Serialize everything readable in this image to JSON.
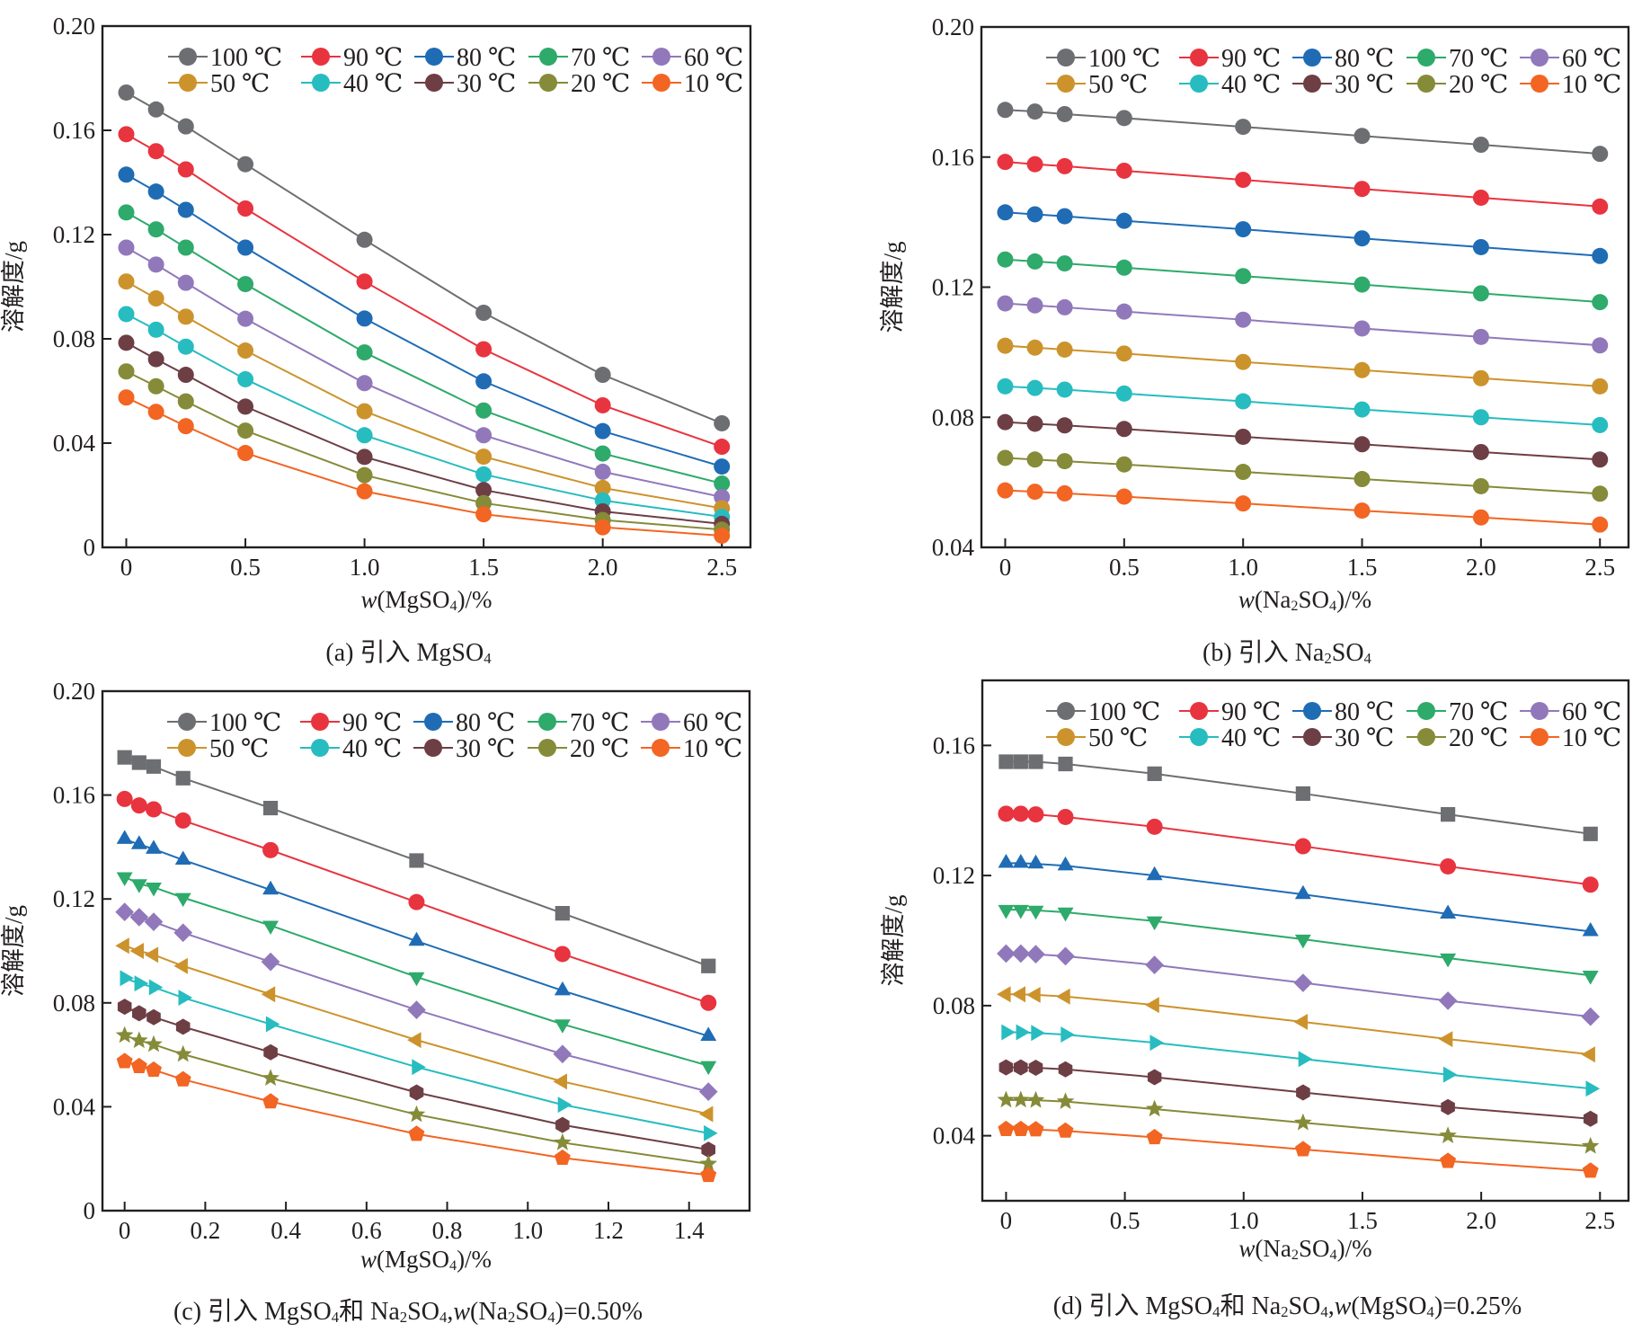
{
  "chart_data": [
    {
      "id": "a",
      "type": "line",
      "caption": {
        "prefix": "(a) 引入 ",
        "formula": [
          [
            "Mg",
            ""
          ],
          [
            "SO",
            ""
          ],
          [
            "4",
            "sub"
          ]
        ]
      },
      "xlabel": {
        "italic": "w",
        "text": "(MgSO",
        "sub": "4",
        "after": ")/%"
      },
      "ylabel": "溶解度/g",
      "xlim": [
        -0.1,
        2.62
      ],
      "ylim": [
        0,
        0.2
      ],
      "xticks": [
        0,
        0.5,
        1.0,
        1.5,
        2.0,
        2.5
      ],
      "xtick_labels": [
        "0",
        "0.5",
        "1.0",
        "1.5",
        "2.0",
        "2.5"
      ],
      "yticks": [
        0,
        0.04,
        0.08,
        0.12,
        0.16,
        0.2
      ],
      "ytick_labels": [
        "0",
        "0.04",
        "0.08",
        "0.12",
        "0.16",
        "0.20"
      ],
      "marker_mode": "circle",
      "legend_position": "top-right",
      "grid": false,
      "x": [
        0,
        0.125,
        0.25,
        0.5,
        1.0,
        1.5,
        2.0,
        2.5
      ],
      "series": [
        {
          "name": "100 ℃",
          "values": [
            0.1745,
            0.168,
            0.1615,
            0.147,
            0.118,
            0.09,
            0.0662,
            0.0476
          ]
        },
        {
          "name": "90 ℃",
          "values": [
            0.1585,
            0.152,
            0.145,
            0.13,
            0.102,
            0.076,
            0.0545,
            0.0386
          ]
        },
        {
          "name": "80 ℃",
          "values": [
            0.143,
            0.1365,
            0.1295,
            0.115,
            0.0878,
            0.0637,
            0.0446,
            0.031
          ]
        },
        {
          "name": "70 ℃",
          "values": [
            0.1285,
            0.122,
            0.115,
            0.101,
            0.0748,
            0.0525,
            0.036,
            0.0245
          ]
        },
        {
          "name": "60 ℃",
          "values": [
            0.115,
            0.1085,
            0.1015,
            0.0877,
            0.063,
            0.043,
            0.029,
            0.0193
          ]
        },
        {
          "name": "50 ℃",
          "values": [
            0.102,
            0.0955,
            0.0885,
            0.0755,
            0.0522,
            0.0348,
            0.0228,
            0.015
          ]
        },
        {
          "name": "40 ℃",
          "values": [
            0.0895,
            0.0835,
            0.077,
            0.0645,
            0.043,
            0.028,
            0.018,
            0.0117
          ]
        },
        {
          "name": "30 ℃",
          "values": [
            0.0785,
            0.0722,
            0.0662,
            0.054,
            0.0347,
            0.022,
            0.0138,
            0.009
          ]
        },
        {
          "name": "20 ℃",
          "values": [
            0.0675,
            0.0618,
            0.056,
            0.0448,
            0.0277,
            0.017,
            0.0105,
            0.0068
          ]
        },
        {
          "name": "10 ℃",
          "values": [
            0.0575,
            0.052,
            0.0465,
            0.0362,
            0.0215,
            0.0127,
            0.0077,
            0.0045
          ]
        }
      ]
    },
    {
      "id": "b",
      "type": "line",
      "caption": {
        "prefix": "(b) 引入 ",
        "formula": [
          [
            "Na",
            ""
          ],
          [
            "2",
            "sub"
          ],
          [
            "SO",
            ""
          ],
          [
            "4",
            "sub"
          ]
        ]
      },
      "xlabel": {
        "italic": "w",
        "text": "(Na",
        "sub": "2",
        "mid": "SO",
        "sub2": "4",
        "after": ")/%"
      },
      "ylabel": "溶解度/g",
      "xlim": [
        -0.1,
        2.62
      ],
      "ylim": [
        0.04,
        0.2
      ],
      "xticks": [
        0,
        0.5,
        1.0,
        1.5,
        2.0,
        2.5
      ],
      "xtick_labels": [
        "0",
        "0.5",
        "1.0",
        "1.5",
        "2.0",
        "2.5"
      ],
      "yticks": [
        0.04,
        0.08,
        0.12,
        0.16,
        0.2
      ],
      "ytick_labels": [
        "0.04",
        "0.08",
        "0.12",
        "0.16",
        "0.20"
      ],
      "marker_mode": "circle",
      "legend_position": "top-right",
      "grid": false,
      "x": [
        0,
        0.125,
        0.25,
        0.5,
        1.0,
        1.5,
        2.0,
        2.5
      ],
      "series": [
        {
          "name": "100 ℃",
          "values": [
            0.1745,
            0.174,
            0.1732,
            0.172,
            0.1693,
            0.1665,
            0.1638,
            0.161
          ]
        },
        {
          "name": "90 ℃",
          "values": [
            0.1585,
            0.1578,
            0.1572,
            0.1558,
            0.153,
            0.1502,
            0.1475,
            0.1448
          ]
        },
        {
          "name": "80 ℃",
          "values": [
            0.143,
            0.1424,
            0.1418,
            0.1404,
            0.1378,
            0.135,
            0.1323,
            0.1296
          ]
        },
        {
          "name": "70 ℃",
          "values": [
            0.1285,
            0.1279,
            0.1273,
            0.126,
            0.1234,
            0.1208,
            0.1181,
            0.1154
          ]
        },
        {
          "name": "60 ℃",
          "values": [
            0.115,
            0.1144,
            0.1138,
            0.1125,
            0.11,
            0.1073,
            0.1047,
            0.1021
          ]
        },
        {
          "name": "50 ℃",
          "values": [
            0.102,
            0.1014,
            0.1008,
            0.0996,
            0.097,
            0.0945,
            0.092,
            0.0895
          ]
        },
        {
          "name": "40 ℃",
          "values": [
            0.0895,
            0.089,
            0.0885,
            0.0873,
            0.0849,
            0.0824,
            0.08,
            0.0776
          ]
        },
        {
          "name": "30 ℃",
          "values": [
            0.0785,
            0.078,
            0.0775,
            0.0764,
            0.074,
            0.0717,
            0.0693,
            0.067
          ]
        },
        {
          "name": "20 ℃",
          "values": [
            0.0675,
            0.067,
            0.0665,
            0.0655,
            0.0632,
            0.061,
            0.0588,
            0.0565
          ]
        },
        {
          "name": "10 ℃",
          "values": [
            0.0575,
            0.0571,
            0.0566,
            0.0556,
            0.0535,
            0.0513,
            0.0492,
            0.047
          ]
        }
      ]
    },
    {
      "id": "c",
      "type": "line",
      "caption": {
        "prefix": "(c) 引入 ",
        "formula": [
          [
            "Mg",
            ""
          ],
          [
            "SO",
            ""
          ],
          [
            "4",
            "sub"
          ],
          [
            "和 Na",
            ""
          ],
          [
            "2",
            "sub"
          ],
          [
            "SO",
            ""
          ],
          [
            "4",
            "sub"
          ],
          [
            ",",
            ""
          ],
          [
            "w",
            "italic"
          ],
          [
            "(Na",
            ""
          ],
          [
            "2",
            "sub"
          ],
          [
            "SO",
            ""
          ],
          [
            "4",
            "sub"
          ],
          [
            ")=0.50%",
            ""
          ]
        ]
      },
      "xlabel": {
        "italic": "w",
        "text": "(MgSO",
        "sub": "4",
        "after": ")/%"
      },
      "ylabel": "溶解度/g",
      "xlim": [
        -0.055,
        1.55
      ],
      "ylim": [
        0,
        0.2
      ],
      "xticks": [
        0,
        0.2,
        0.4,
        0.6,
        0.8,
        1.0,
        1.2,
        1.4
      ],
      "xtick_labels": [
        "0",
        "0.2",
        "0.4",
        "0.6",
        "0.8",
        "1.0",
        "1.2",
        "1.4"
      ],
      "yticks": [
        0,
        0.04,
        0.08,
        0.12,
        0.16,
        0.2
      ],
      "ytick_labels": [
        "0",
        "0.04",
        "0.08",
        "0.12",
        "0.16",
        "0.20"
      ],
      "marker_mode": "shapes",
      "legend_position": "top-right",
      "grid": false,
      "x": [
        0,
        0.036,
        0.072,
        0.145,
        0.362,
        0.724,
        1.086,
        1.448
      ],
      "series": [
        {
          "name": "100 ℃",
          "marker": "square",
          "values": [
            0.1745,
            0.1725,
            0.171,
            0.1665,
            0.155,
            0.1348,
            0.1145,
            0.0942
          ]
        },
        {
          "name": "90 ℃",
          "marker": "circle",
          "values": [
            0.1585,
            0.156,
            0.1545,
            0.1502,
            0.1388,
            0.1188,
            0.0988,
            0.08
          ]
        },
        {
          "name": "80 ℃",
          "marker": "triangle-up",
          "values": [
            0.143,
            0.141,
            0.1392,
            0.135,
            0.1235,
            0.1038,
            0.0847,
            0.0672
          ]
        },
        {
          "name": "70 ℃",
          "marker": "triangle-down",
          "values": [
            0.1285,
            0.1258,
            0.1245,
            0.1205,
            0.1098,
            0.09,
            0.0718,
            0.0558
          ]
        },
        {
          "name": "60 ℃",
          "marker": "diamond",
          "values": [
            0.115,
            0.113,
            0.1112,
            0.107,
            0.0958,
            0.0773,
            0.0603,
            0.0458
          ]
        },
        {
          "name": "50 ℃",
          "marker": "triangle-left",
          "values": [
            0.102,
            0.1,
            0.0985,
            0.0942,
            0.0833,
            0.0657,
            0.0497,
            0.0372
          ]
        },
        {
          "name": "40 ℃",
          "marker": "triangle-right",
          "values": [
            0.0895,
            0.0875,
            0.086,
            0.082,
            0.0718,
            0.0553,
            0.0408,
            0.0298
          ]
        },
        {
          "name": "30 ℃",
          "marker": "hexagon",
          "values": [
            0.0785,
            0.076,
            0.0745,
            0.0708,
            0.061,
            0.0455,
            0.033,
            0.0235
          ]
        },
        {
          "name": "20 ℃",
          "marker": "star",
          "values": [
            0.0675,
            0.0655,
            0.064,
            0.0602,
            0.051,
            0.037,
            0.0262,
            0.018
          ]
        },
        {
          "name": "10 ℃",
          "marker": "pentagon",
          "values": [
            0.0575,
            0.0556,
            0.0542,
            0.0505,
            0.042,
            0.0295,
            0.0203,
            0.0137
          ]
        }
      ]
    },
    {
      "id": "d",
      "type": "line",
      "caption": {
        "prefix": "(d) 引入 ",
        "formula": [
          [
            "Mg",
            ""
          ],
          [
            "SO",
            ""
          ],
          [
            "4",
            "sub"
          ],
          [
            "和 Na",
            ""
          ],
          [
            "2",
            "sub"
          ],
          [
            "SO",
            ""
          ],
          [
            "4",
            "sub"
          ],
          [
            ",",
            ""
          ],
          [
            "w",
            "italic"
          ],
          [
            "(Mg",
            ""
          ],
          [
            "SO",
            ""
          ],
          [
            "4",
            "sub"
          ],
          [
            ")=0.25%",
            ""
          ]
        ]
      },
      "xlabel": {
        "italic": "w",
        "text": "(Na",
        "sub": "2",
        "mid": "SO",
        "sub2": "4",
        "after": ")/%"
      },
      "ylabel": "溶解度/g",
      "xlim": [
        -0.1,
        2.62
      ],
      "ylim": [
        0.02,
        0.18
      ],
      "xticks": [
        0,
        0.5,
        1.0,
        1.5,
        2.0,
        2.5
      ],
      "xtick_labels": [
        "0",
        "0.5",
        "1.0",
        "1.5",
        "2.0",
        "2.5"
      ],
      "yticks": [
        0.04,
        0.08,
        0.12,
        0.16
      ],
      "ytick_labels": [
        "0.04",
        "0.08",
        "0.12",
        "0.16"
      ],
      "marker_mode": "shapes",
      "legend_position": "top-right",
      "grid": false,
      "x": [
        0,
        0.062,
        0.125,
        0.25,
        0.625,
        1.25,
        1.86,
        2.46
      ],
      "series": [
        {
          "name": "100 ℃",
          "marker": "square",
          "values": [
            0.155,
            0.155,
            0.155,
            0.1543,
            0.1513,
            0.1452,
            0.1388,
            0.1328
          ]
        },
        {
          "name": "90 ℃",
          "marker": "circle",
          "values": [
            0.139,
            0.139,
            0.1388,
            0.138,
            0.135,
            0.129,
            0.1228,
            0.1172
          ]
        },
        {
          "name": "80 ℃",
          "marker": "triangle-up",
          "values": [
            0.1238,
            0.1238,
            0.1236,
            0.123,
            0.12,
            0.1142,
            0.1082,
            0.1028
          ]
        },
        {
          "name": "70 ℃",
          "marker": "triangle-down",
          "values": [
            0.1095,
            0.1095,
            0.1093,
            0.1087,
            0.106,
            0.1004,
            0.0946,
            0.0893
          ]
        },
        {
          "name": "60 ℃",
          "marker": "diamond",
          "values": [
            0.096,
            0.096,
            0.0958,
            0.0952,
            0.0925,
            0.087,
            0.0815,
            0.0766
          ]
        },
        {
          "name": "50 ℃",
          "marker": "triangle-left",
          "values": [
            0.0835,
            0.0835,
            0.0833,
            0.0828,
            0.0802,
            0.075,
            0.0697,
            0.065
          ]
        },
        {
          "name": "40 ℃",
          "marker": "triangle-right",
          "values": [
            0.0718,
            0.0718,
            0.0716,
            0.0711,
            0.0686,
            0.0636,
            0.0588,
            0.0545
          ]
        },
        {
          "name": "30 ℃",
          "marker": "hexagon",
          "values": [
            0.061,
            0.061,
            0.0609,
            0.0604,
            0.058,
            0.0533,
            0.0488,
            0.0452
          ]
        },
        {
          "name": "20 ℃",
          "marker": "star",
          "values": [
            0.051,
            0.051,
            0.0509,
            0.0505,
            0.0482,
            0.044,
            0.04,
            0.0368
          ]
        },
        {
          "name": "10 ℃",
          "marker": "pentagon",
          "values": [
            0.042,
            0.042,
            0.0419,
            0.0415,
            0.0395,
            0.0358,
            0.0322,
            0.0292
          ]
        }
      ]
    }
  ],
  "series_colors": [
    "#6d6e71",
    "#e8343f",
    "#1f6cb5",
    "#2eaa6b",
    "#9178bb",
    "#cc932c",
    "#27bcc0",
    "#6e3e45",
    "#858b38",
    "#f26522"
  ],
  "legend_rows": [
    [
      0,
      1,
      2,
      3,
      4
    ],
    [
      5,
      6,
      7,
      8,
      9
    ]
  ]
}
